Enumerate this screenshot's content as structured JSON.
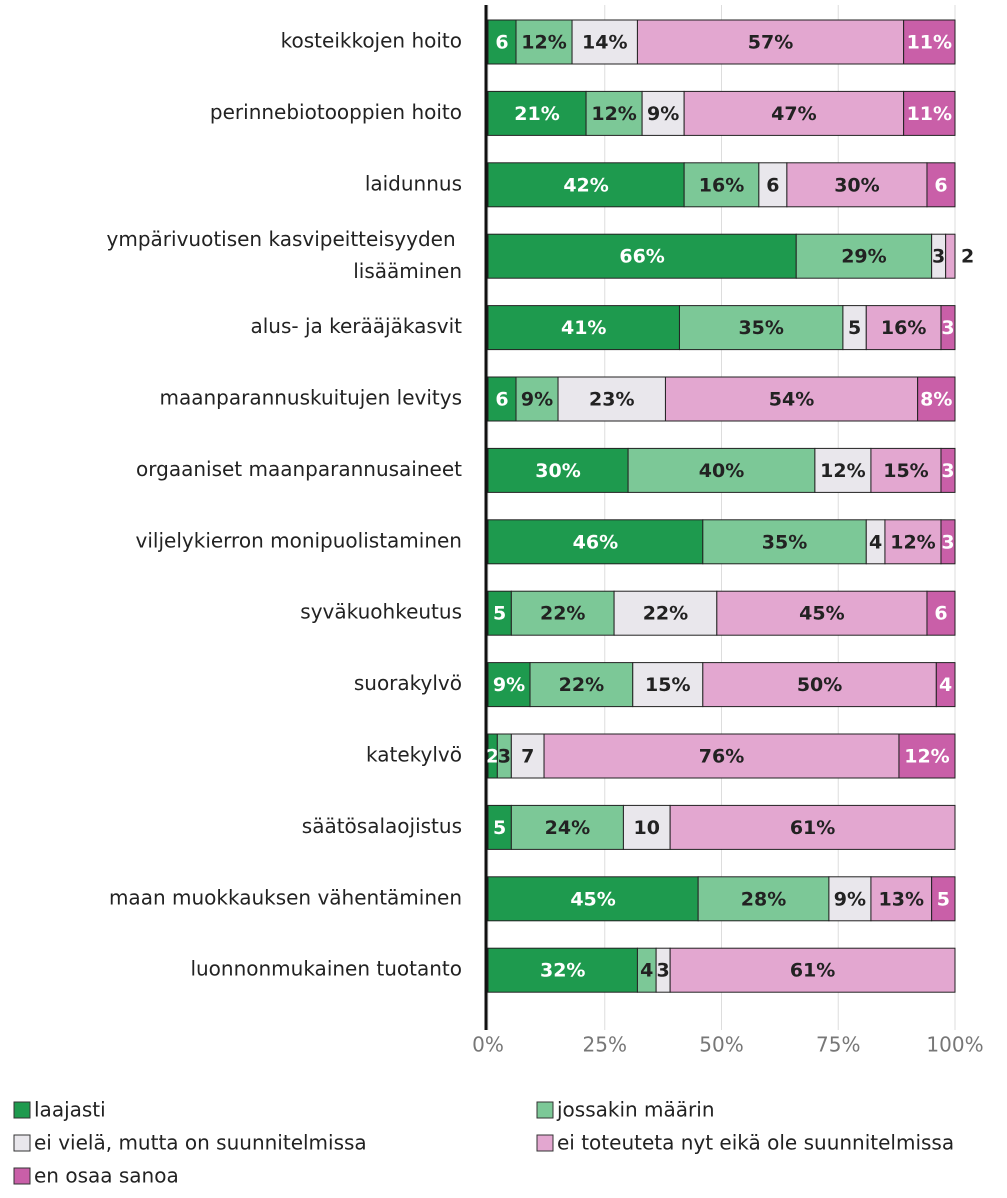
{
  "chart_data": {
    "type": "stacked-barh",
    "categories": [
      "kosteikkojen hoito",
      "perinnebiotooppien hoito",
      "laidunnus",
      "ympärivuotisen kasvipeitteisyyden lisääminen",
      "alus- ja kerääjäkasvit",
      "maanparannuskuitujen levitys",
      "orgaaniset maanparannusaineet",
      "viljelykierron monipuolistaminen",
      "syväkuohkeutus",
      "suorakylvö",
      "katekylvö",
      "säätösalaojistus",
      "maan muokkauksen vähentäminen",
      "luonnonmukainen tuotanto"
    ],
    "series": [
      {
        "name": "laajasti",
        "color": "#1e9a4e",
        "values": [
          6,
          21,
          42,
          66,
          41,
          6,
          30,
          46,
          5,
          9,
          2,
          5,
          45,
          32
        ],
        "value_labels": [
          "6",
          "21%",
          "42%",
          "66%",
          "41%",
          "6",
          "30%",
          "46%",
          "5",
          "9%",
          "2",
          "5",
          "45%",
          "32%"
        ]
      },
      {
        "name": "jossakin määrin",
        "color": "#7cc897",
        "values": [
          12,
          12,
          16,
          29,
          35,
          9,
          40,
          35,
          22,
          22,
          3,
          24,
          28,
          4
        ],
        "value_labels": [
          "12%",
          "12%",
          "16%",
          "29%",
          "35%",
          "9%",
          "40%",
          "35%",
          "22%",
          "22%",
          "3",
          "24%",
          "28%",
          "4"
        ]
      },
      {
        "name": "ei vielä, mutta on suunnitelmissa",
        "color": "#e9e7ec",
        "values": [
          14,
          9,
          6,
          3,
          5,
          23,
          12,
          4,
          22,
          15,
          7,
          10,
          9,
          3
        ],
        "value_labels": [
          "14%",
          "9%",
          "6",
          "3",
          "5",
          "23%",
          "12%",
          "4",
          "22%",
          "15%",
          "7",
          "10",
          "9%",
          "3"
        ]
      },
      {
        "name": "ei toteuteta nyt eikä ole suunnitelmissa",
        "color": "#e3a7d0",
        "values": [
          57,
          47,
          30,
          2,
          16,
          54,
          15,
          12,
          45,
          50,
          76,
          61,
          13,
          61
        ],
        "value_labels": [
          "57%",
          "47%",
          "30%",
          "2",
          "16%",
          "54%",
          "15%",
          "12%",
          "45%",
          "50%",
          "76%",
          "61%",
          "13%",
          "61%"
        ]
      },
      {
        "name": "en osaa sanoa",
        "color": "#c95fa8",
        "values": [
          11,
          11,
          6,
          null,
          3,
          8,
          3,
          3,
          6,
          4,
          12,
          null,
          5,
          null
        ],
        "value_labels": [
          "11%",
          "11%",
          "6",
          null,
          "3",
          "8%",
          "3",
          "3",
          "6",
          "4",
          "12%",
          null,
          "5",
          null
        ]
      }
    ],
    "xlim": [
      0,
      100
    ],
    "xticks": [
      {
        "value": 0,
        "label": "0%"
      },
      {
        "value": 25,
        "label": "25%"
      },
      {
        "value": 50,
        "label": "50%"
      },
      {
        "value": 75,
        "label": "75%"
      },
      {
        "value": 100,
        "label": "100%"
      }
    ],
    "grid": true,
    "legend": "bottom"
  }
}
